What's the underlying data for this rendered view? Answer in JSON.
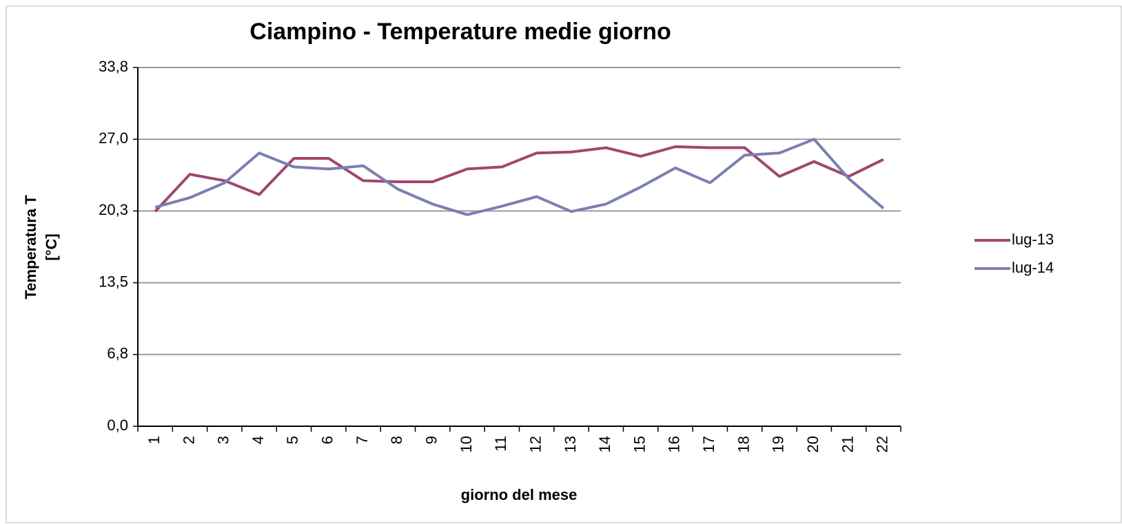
{
  "chart_data": {
    "type": "line",
    "title": "Ciampino - Temperature medie giorno",
    "x_label": "giorno del mese",
    "y_label": [
      "Temperatura  T",
      "[°C]"
    ],
    "categories": [
      "1",
      "2",
      "3",
      "4",
      "5",
      "6",
      "7",
      "8",
      "9",
      "10",
      "11",
      "12",
      "13",
      "14",
      "15",
      "16",
      "17",
      "18",
      "19",
      "20",
      "21",
      "22"
    ],
    "series": [
      {
        "name": "lug-13",
        "color": "#a0466f",
        "values": [
          20.2,
          23.7,
          23.1,
          21.8,
          25.2,
          25.2,
          23.1,
          23.0,
          23.0,
          24.2,
          24.4,
          25.7,
          25.8,
          26.2,
          25.4,
          26.3,
          26.2,
          26.2,
          23.5,
          24.9,
          23.5,
          25.1
        ]
      },
      {
        "name": "lug-14",
        "color": "#7a7fb2",
        "values": [
          20.6,
          21.5,
          22.9,
          25.7,
          24.4,
          24.2,
          24.5,
          22.3,
          20.9,
          19.9,
          20.7,
          21.6,
          20.2,
          20.9,
          22.5,
          24.3,
          22.9,
          25.5,
          25.7,
          27.0,
          23.3,
          20.5
        ]
      }
    ],
    "ylim": [
      0,
      33.75
    ],
    "yticks": [
      {
        "value": 0,
        "label": "0,0"
      },
      {
        "value": 6.75,
        "label": "6,8"
      },
      {
        "value": 13.5,
        "label": "13,5"
      },
      {
        "value": 20.25,
        "label": "20,3"
      },
      {
        "value": 27,
        "label": "27,0"
      },
      {
        "value": 33.75,
        "label": "33,8"
      }
    ],
    "grid": true,
    "legend": "right"
  }
}
